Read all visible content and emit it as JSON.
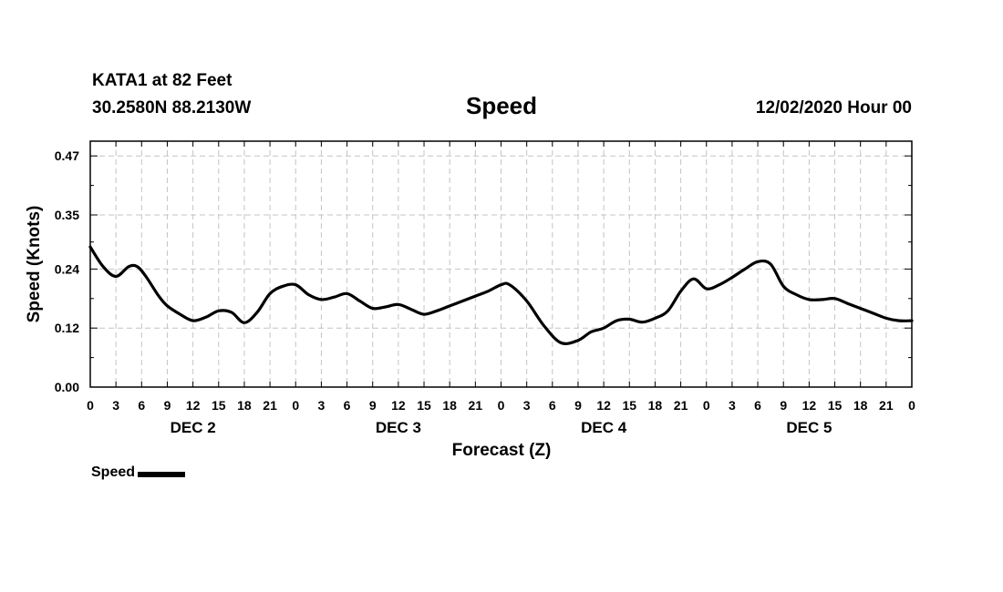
{
  "header": {
    "station": "KATA1 at 82 Feet",
    "coords": "30.2580N 88.2130W",
    "title": "Speed",
    "timestamp": "12/02/2020 Hour 00"
  },
  "chart_data": {
    "type": "line",
    "title": "Speed",
    "xlabel": "Forecast (Z)",
    "ylabel": "Speed (Knots)",
    "x_range_hours": [
      0,
      96
    ],
    "ylim": [
      0.0,
      0.5
    ],
    "y_ticks": [
      0.0,
      0.12,
      0.24,
      0.35,
      0.47
    ],
    "y_tick_labels": [
      "0.00",
      "0.12",
      "0.24",
      "0.35",
      "0.47"
    ],
    "x_tick_labels": [
      "0",
      "3",
      "6",
      "9",
      "12",
      "15",
      "18",
      "21",
      "0",
      "3",
      "6",
      "9",
      "12",
      "15",
      "18",
      "21",
      "0",
      "3",
      "6",
      "9",
      "12",
      "15",
      "18",
      "21",
      "0",
      "3",
      "6",
      "9",
      "12",
      "15",
      "18",
      "21",
      "0"
    ],
    "day_labels": [
      {
        "label": "DEC 2",
        "hour": 12
      },
      {
        "label": "DEC 3",
        "hour": 36
      },
      {
        "label": "DEC 4",
        "hour": 60
      },
      {
        "label": "DEC 5",
        "hour": 84
      }
    ],
    "grid": true,
    "series": [
      {
        "name": "Speed",
        "color": "#000000",
        "x": [
          0,
          1.5,
          3,
          4.5,
          5.5,
          6.5,
          8,
          9,
          10.5,
          12,
          13.5,
          15,
          16.5,
          18,
          19.5,
          21,
          22.5,
          24,
          25.5,
          27,
          28.5,
          30,
          31.5,
          33,
          34.5,
          36,
          37.5,
          39,
          40.5,
          42,
          43.5,
          45,
          46.5,
          48,
          49,
          51,
          53,
          55,
          57,
          58.5,
          60,
          61.5,
          63,
          64.5,
          66,
          67.5,
          69,
          70.5,
          72,
          73.5,
          75,
          76.5,
          78,
          79.5,
          81,
          82.5,
          84,
          85.5,
          87,
          88.5,
          90,
          91.5,
          93,
          94.5,
          96
        ],
        "values": [
          0.285,
          0.245,
          0.225,
          0.245,
          0.245,
          0.225,
          0.185,
          0.165,
          0.148,
          0.135,
          0.142,
          0.155,
          0.152,
          0.131,
          0.152,
          0.19,
          0.205,
          0.208,
          0.188,
          0.178,
          0.183,
          0.19,
          0.175,
          0.16,
          0.163,
          0.168,
          0.158,
          0.148,
          0.155,
          0.165,
          0.175,
          0.185,
          0.195,
          0.208,
          0.208,
          0.175,
          0.125,
          0.09,
          0.095,
          0.112,
          0.12,
          0.135,
          0.138,
          0.132,
          0.14,
          0.155,
          0.195,
          0.22,
          0.2,
          0.208,
          0.223,
          0.24,
          0.255,
          0.25,
          0.205,
          0.188,
          0.178,
          0.178,
          0.18,
          0.17,
          0.16,
          0.15,
          0.14,
          0.135,
          0.135
        ]
      }
    ],
    "legend": {
      "label": "Speed",
      "position": "bottom-left"
    }
  }
}
